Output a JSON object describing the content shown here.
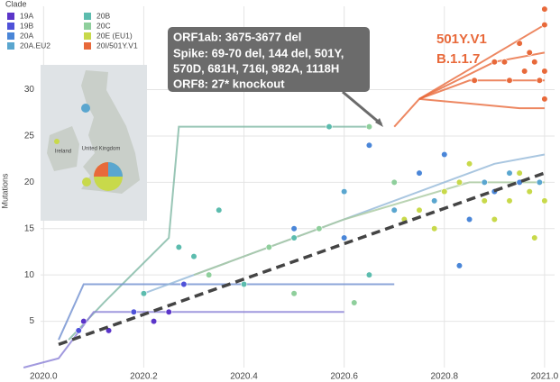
{
  "chart_data": {
    "type": "scatter",
    "legend_title": "Clade",
    "ylabel": "Mutations",
    "xlim": [
      2019.94,
      2021.02
    ],
    "ylim": [
      0,
      39
    ],
    "xticks": [
      {
        "value": 2020,
        "label": "2020.0"
      },
      2020.2,
      2020.4,
      2020.6,
      2020.8,
      {
        "value": 2021,
        "label": "2021.0"
      }
    ],
    "yticks": [
      5,
      10,
      15,
      20,
      25,
      30
    ],
    "grid": true,
    "series": [
      {
        "name": "19A",
        "color": "#5b35c9",
        "x": [
          2020.08,
          2020.13,
          2020.22,
          2020.25
        ],
        "y": [
          5,
          4,
          5,
          6
        ]
      },
      {
        "name": "19B",
        "color": "#4f52d9",
        "x": [
          2020.07,
          2020.18,
          2020.28
        ],
        "y": [
          4,
          6,
          9
        ]
      },
      {
        "name": "20A",
        "color": "#4a86d8",
        "x": [
          2020.5,
          2020.6,
          2020.65,
          2020.75,
          2020.8,
          2020.83,
          2020.85,
          2020.9,
          2020.95
        ],
        "y": [
          15,
          14,
          24,
          21,
          23,
          11,
          16,
          19,
          20
        ]
      },
      {
        "name": "20A.EU2",
        "color": "#5aa6cf",
        "x": [
          2020.6,
          2020.7,
          2020.78,
          2020.88,
          2020.93,
          2020.99
        ],
        "y": [
          19,
          17,
          18,
          20,
          21,
          20
        ]
      },
      {
        "name": "20B",
        "color": "#5cbcae",
        "x": [
          2020.2,
          2020.27,
          2020.3,
          2020.35,
          2020.4,
          2020.5,
          2020.57,
          2020.65
        ],
        "y": [
          8,
          13,
          12,
          17,
          9,
          14,
          26,
          10
        ]
      },
      {
        "name": "20C",
        "color": "#8fcf9c",
        "x": [
          2020.33,
          2020.45,
          2020.5,
          2020.55,
          2020.62,
          2020.65,
          2020.7
        ],
        "y": [
          10,
          13,
          8,
          15,
          7,
          26,
          20
        ]
      },
      {
        "name": "20E (EU1)",
        "color": "#c8d94a",
        "x": [
          2020.72,
          2020.75,
          2020.78,
          2020.8,
          2020.83,
          2020.85,
          2020.88,
          2020.9,
          2020.93,
          2020.95,
          2020.97,
          2020.98,
          2021.0
        ],
        "y": [
          16,
          17,
          15,
          19,
          20,
          22,
          18,
          16,
          18,
          21,
          19,
          14,
          18
        ]
      },
      {
        "name": "20I/501Y.V1",
        "color": "#e8693a",
        "x": [
          2020.86,
          2020.9,
          2020.92,
          2020.93,
          2020.95,
          2020.96,
          2020.97,
          2020.98,
          2020.99,
          2021.0,
          2021.0,
          2021.0,
          2021.0
        ],
        "y": [
          31,
          33,
          33,
          31,
          35,
          32,
          34,
          33,
          31,
          37,
          29,
          32,
          38.7
        ]
      }
    ],
    "branches": [
      {
        "color": "#7fb8a4",
        "x": [
          2020.05,
          2020.12,
          2020.25,
          2020.27,
          2020.65
        ],
        "y": [
          3,
          7,
          14,
          26,
          26
        ]
      },
      {
        "color": "#6f8fd0",
        "x": [
          2020.03,
          2020.08,
          2020.12,
          2020.7
        ],
        "y": [
          3,
          9,
          9,
          9
        ]
      },
      {
        "color": "#8a7fd6",
        "x": [
          2019.96,
          2020.03,
          2020.1,
          2020.6
        ],
        "y": [
          0,
          1,
          6,
          6
        ]
      },
      {
        "color": "#94b8d8",
        "x": [
          2020.2,
          2020.5,
          2020.9,
          2021.0
        ],
        "y": [
          8,
          14,
          22,
          23
        ]
      },
      {
        "color": "#a9c9a0",
        "x": [
          2020.3,
          2020.6,
          2020.85,
          2021.0
        ],
        "y": [
          10,
          16,
          20,
          20
        ]
      },
      {
        "color": "#e8693a",
        "x": [
          2020.7,
          2020.75,
          2021.0
        ],
        "y": [
          26,
          29,
          37
        ]
      },
      {
        "color": "#e8693a",
        "x": [
          2020.75,
          2020.85,
          2021.0
        ],
        "y": [
          29,
          31,
          31
        ]
      },
      {
        "color": "#e8693a",
        "x": [
          2020.75,
          2020.9,
          2021.0
        ],
        "y": [
          29,
          33,
          34
        ]
      },
      {
        "color": "#e8693a",
        "x": [
          2020.75,
          2020.95,
          2021.0
        ],
        "y": [
          29,
          28,
          28
        ]
      }
    ],
    "trend": {
      "color": "#444444",
      "x": [
        2020.03,
        2021.0
      ],
      "y": [
        2.5,
        21
      ]
    },
    "annotation": [
      "ORF1ab: 3675-3677 del",
      "Spike: 69-70 del, 144 del, 501Y,",
      "570D, 681H, 716I, 982A, 1118H",
      "ORF8: 27* knockout"
    ],
    "lineage": [
      "501Y.V1",
      "B.1.1.7"
    ],
    "map_labels": [
      "United Kingdom",
      "Ireland"
    ]
  }
}
